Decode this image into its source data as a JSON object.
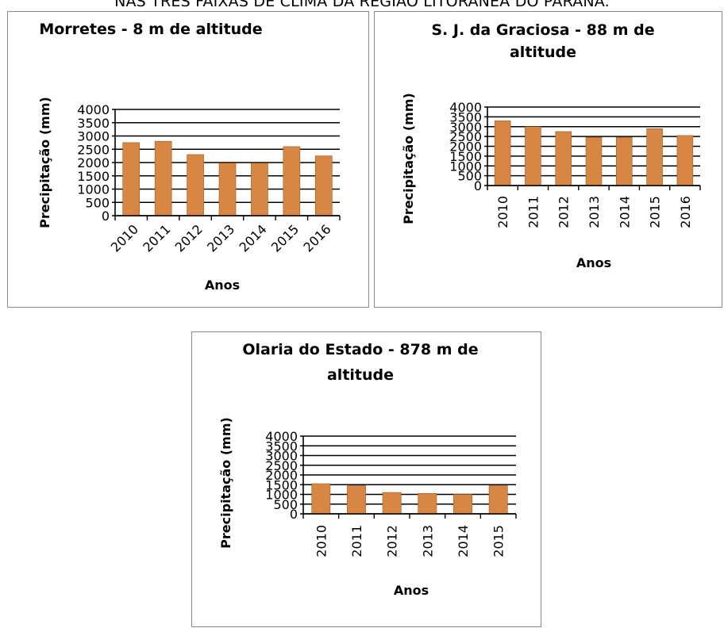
{
  "heading": "NAS TRÊS FAIXAS DE CLIMA DA REGIÃO LITORÂNEA DO PARANÁ.",
  "colors": {
    "bar": "#d88643",
    "bar_stroke": "#9a5a26",
    "grid": "#000000",
    "panel_border": "#8c8c8c"
  },
  "chart_data": [
    {
      "type": "bar",
      "title_lines": [
        "Morretes - 8 m de altitude"
      ],
      "xlabel": "Anos",
      "ylabel": "Precipitação (mm)",
      "ylim": [
        0,
        4000
      ],
      "yticks": [
        "0",
        "500",
        "1000",
        "1500",
        "2000",
        "2500",
        "3000",
        "3500",
        "4000"
      ],
      "categories": [
        "2010",
        "2011",
        "2012",
        "2013",
        "2014",
        "2015",
        "2016"
      ],
      "values": [
        2750,
        2800,
        2300,
        1980,
        1980,
        2600,
        2250
      ],
      "grid": true,
      "xtick_rotation": -45
    },
    {
      "type": "bar",
      "title_lines": [
        "S. J. da Graciosa - 88 m de",
        "altitude"
      ],
      "xlabel": "Anos",
      "ylabel": "Precipitação (mm)",
      "ylim": [
        0,
        4000
      ],
      "yticks": [
        "0",
        "500",
        "1000",
        "1500",
        "2000",
        "2500",
        "3000",
        "3500",
        "4000"
      ],
      "categories": [
        "2010",
        "2011",
        "2012",
        "2013",
        "2014",
        "2015",
        "2016"
      ],
      "values": [
        3300,
        3000,
        2750,
        2450,
        2450,
        2900,
        2550
      ],
      "grid": true,
      "xtick_rotation": -90
    },
    {
      "type": "bar",
      "title_lines": [
        "Olaria do Estado - 878 m de",
        "altitude"
      ],
      "xlabel": "Anos",
      "ylabel": "Precipitação (mm)",
      "ylim": [
        0,
        4000
      ],
      "yticks": [
        "0",
        "500",
        "1000",
        "1500",
        "2000",
        "2500",
        "3000",
        "3500",
        "4000"
      ],
      "categories": [
        "2010",
        "2011",
        "2012",
        "2013",
        "2014",
        "2015"
      ],
      "values": [
        1550,
        1450,
        1100,
        1050,
        1000,
        1450
      ],
      "grid": true,
      "xtick_rotation": -90
    }
  ]
}
